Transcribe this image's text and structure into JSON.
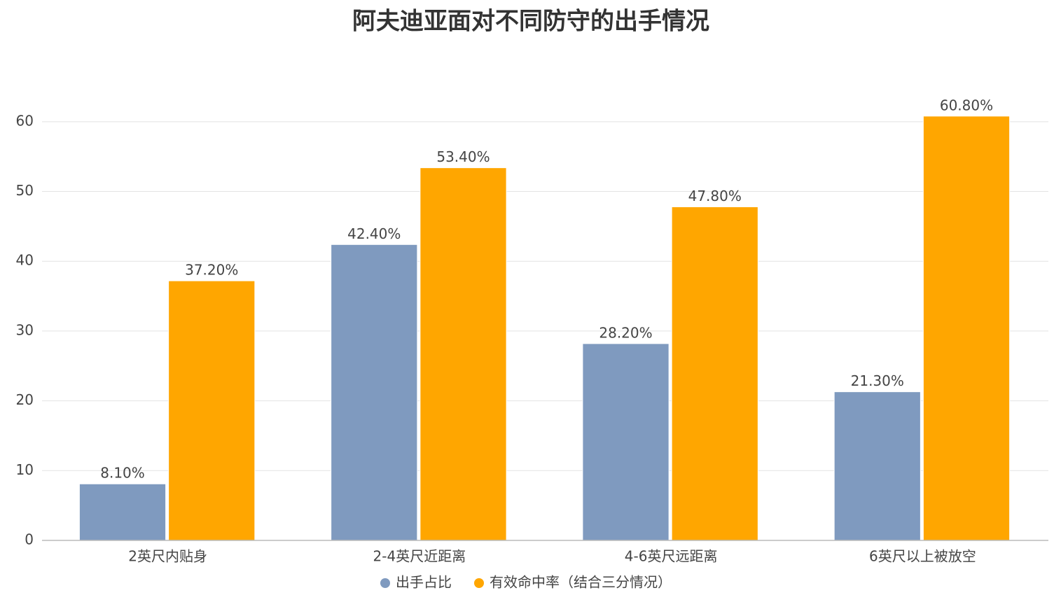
{
  "chart_data": {
    "type": "bar",
    "title": "阿夫迪亚面对不同防守的出手情况",
    "categories": [
      "2英尺内贴身",
      "2-4英尺近距离",
      "4-6英尺远距离",
      "6英尺以上被放空"
    ],
    "series": [
      {
        "name": "出手占比",
        "color": "#7f9abf",
        "values": [
          8.1,
          42.4,
          28.2,
          21.3
        ],
        "value_labels": [
          "8.10%",
          "42.40%",
          "28.20%",
          "21.30%"
        ]
      },
      {
        "name": "有效命中率（结合三分情况）",
        "color": "#ffa600",
        "values": [
          37.2,
          53.4,
          47.8,
          60.8
        ],
        "value_labels": [
          "37.20%",
          "53.40%",
          "47.80%",
          "60.80%"
        ]
      }
    ],
    "ylim": [
      0,
      65
    ],
    "yticks": [
      0,
      10,
      20,
      30,
      40,
      50,
      60
    ],
    "grid": true,
    "legend": "bottom"
  }
}
